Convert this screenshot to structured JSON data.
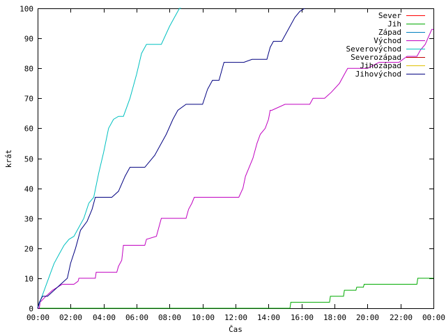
{
  "chart_data": {
    "type": "line",
    "title": "",
    "xlabel": "Čas",
    "ylabel": "krát",
    "xlim": [
      0,
      24
    ],
    "ylim": [
      0,
      100
    ],
    "grid": false,
    "legend_position": "top-right",
    "x_ticks": [
      {
        "value": 0,
        "label": "00:00"
      },
      {
        "value": 2,
        "label": "02:00"
      },
      {
        "value": 4,
        "label": "04:00"
      },
      {
        "value": 6,
        "label": "06:00"
      },
      {
        "value": 8,
        "label": "08:00"
      },
      {
        "value": 10,
        "label": "10:00"
      },
      {
        "value": 12,
        "label": "12:00"
      },
      {
        "value": 14,
        "label": "14:00"
      },
      {
        "value": 16,
        "label": "16:00"
      },
      {
        "value": 18,
        "label": "18:00"
      },
      {
        "value": 20,
        "label": "20:00"
      },
      {
        "value": 22,
        "label": "22:00"
      },
      {
        "value": 24,
        "label": "00:00"
      }
    ],
    "y_ticks": [
      0,
      10,
      20,
      30,
      40,
      50,
      60,
      70,
      80,
      90,
      100
    ],
    "series": [
      {
        "name": "Sever",
        "color": "#ff0000",
        "x": [],
        "y": []
      },
      {
        "name": "Jih",
        "color": "#00aa00",
        "x": [
          0,
          15.3,
          15.35,
          17.7,
          17.75,
          18.55,
          18.6,
          19.3,
          19.35,
          19.75,
          19.8,
          23.0,
          23.05,
          24.0
        ],
        "y": [
          0,
          0,
          2,
          2,
          4,
          4,
          6,
          6,
          7,
          7,
          8,
          8,
          10,
          10
        ]
      },
      {
        "name": "Západ",
        "color": "#0080c0",
        "x": [],
        "y": []
      },
      {
        "name": "Východ",
        "color": "#c000c0",
        "x": [
          0,
          0.1,
          0.15,
          0.5,
          0.9,
          1.5,
          2.2,
          2.45,
          2.5,
          3.5,
          3.55,
          4.8,
          4.9,
          5.1,
          5.2,
          6.5,
          6.6,
          7.2,
          7.5,
          8.0,
          9.0,
          9.15,
          9.35,
          9.5,
          12.0,
          12.2,
          12.45,
          12.6,
          13.05,
          13.3,
          13.5,
          13.8,
          14.0,
          14.1,
          14.2,
          15.0,
          16.0,
          16.5,
          16.7,
          17.4,
          17.8,
          18.3,
          18.6,
          18.8,
          19.4,
          19.6,
          20.0,
          20.7,
          21.9,
          22.4,
          23.0,
          23.2,
          23.5,
          23.9,
          24.0
        ],
        "y": [
          0,
          0,
          2,
          4,
          6,
          8,
          8,
          9,
          10,
          10,
          12,
          12,
          14,
          16,
          21,
          21,
          23,
          24,
          30,
          30,
          30,
          33,
          35,
          37,
          37,
          37,
          40,
          44,
          50,
          55,
          58,
          60,
          63,
          66,
          66,
          68,
          68,
          68,
          70,
          70,
          72,
          75,
          78,
          80,
          80,
          80,
          80,
          82,
          82,
          84,
          84,
          86,
          88,
          93,
          93
        ]
      },
      {
        "name": "Severovýchod",
        "color": "#00c0c0",
        "x": [
          0,
          0.2,
          0.4,
          0.6,
          0.8,
          1.0,
          1.3,
          1.6,
          1.9,
          2.2,
          2.5,
          2.8,
          3.1,
          3.4,
          3.7,
          4.0,
          4.3,
          4.6,
          4.9,
          5.2,
          5.6,
          6.0,
          6.3,
          6.6,
          7.0,
          7.5,
          8.0,
          8.3,
          8.6,
          8.7
        ],
        "y": [
          0,
          3,
          6,
          9,
          12,
          15,
          18,
          21,
          23,
          24,
          27,
          30,
          35,
          37,
          45,
          52,
          60,
          63,
          64,
          64,
          70,
          78,
          85,
          88,
          88,
          88,
          94,
          97,
          100,
          100
        ]
      },
      {
        "name": "Severozápad",
        "color": "#c00000",
        "x": [],
        "y": []
      },
      {
        "name": "Jihozápad",
        "color": "#e0c000",
        "x": [],
        "y": []
      },
      {
        "name": "Jihovýchod",
        "color": "#000080",
        "x": [
          0,
          0.1,
          0.3,
          0.6,
          1.0,
          1.4,
          1.8,
          2.0,
          2.3,
          2.6,
          3.0,
          3.3,
          3.5,
          4.0,
          4.5,
          4.9,
          5.3,
          5.6,
          6.0,
          6.5,
          6.8,
          7.1,
          7.4,
          7.8,
          8.2,
          8.5,
          9.0,
          9.5,
          10.0,
          10.3,
          10.6,
          11.0,
          11.3,
          12.0,
          12.5,
          13.0,
          13.9,
          14.1,
          14.3,
          14.8,
          15.2,
          15.6,
          15.9,
          16.2
        ],
        "y": [
          0,
          2,
          4,
          4,
          6,
          8,
          10,
          15,
          20,
          26,
          29,
          33,
          37,
          37,
          37,
          39,
          44,
          47,
          47,
          47,
          49,
          51,
          54,
          58,
          63,
          66,
          68,
          68,
          68,
          73,
          76,
          76,
          82,
          82,
          82,
          83,
          83,
          87,
          89,
          89,
          93,
          97,
          99,
          100
        ]
      }
    ]
  }
}
